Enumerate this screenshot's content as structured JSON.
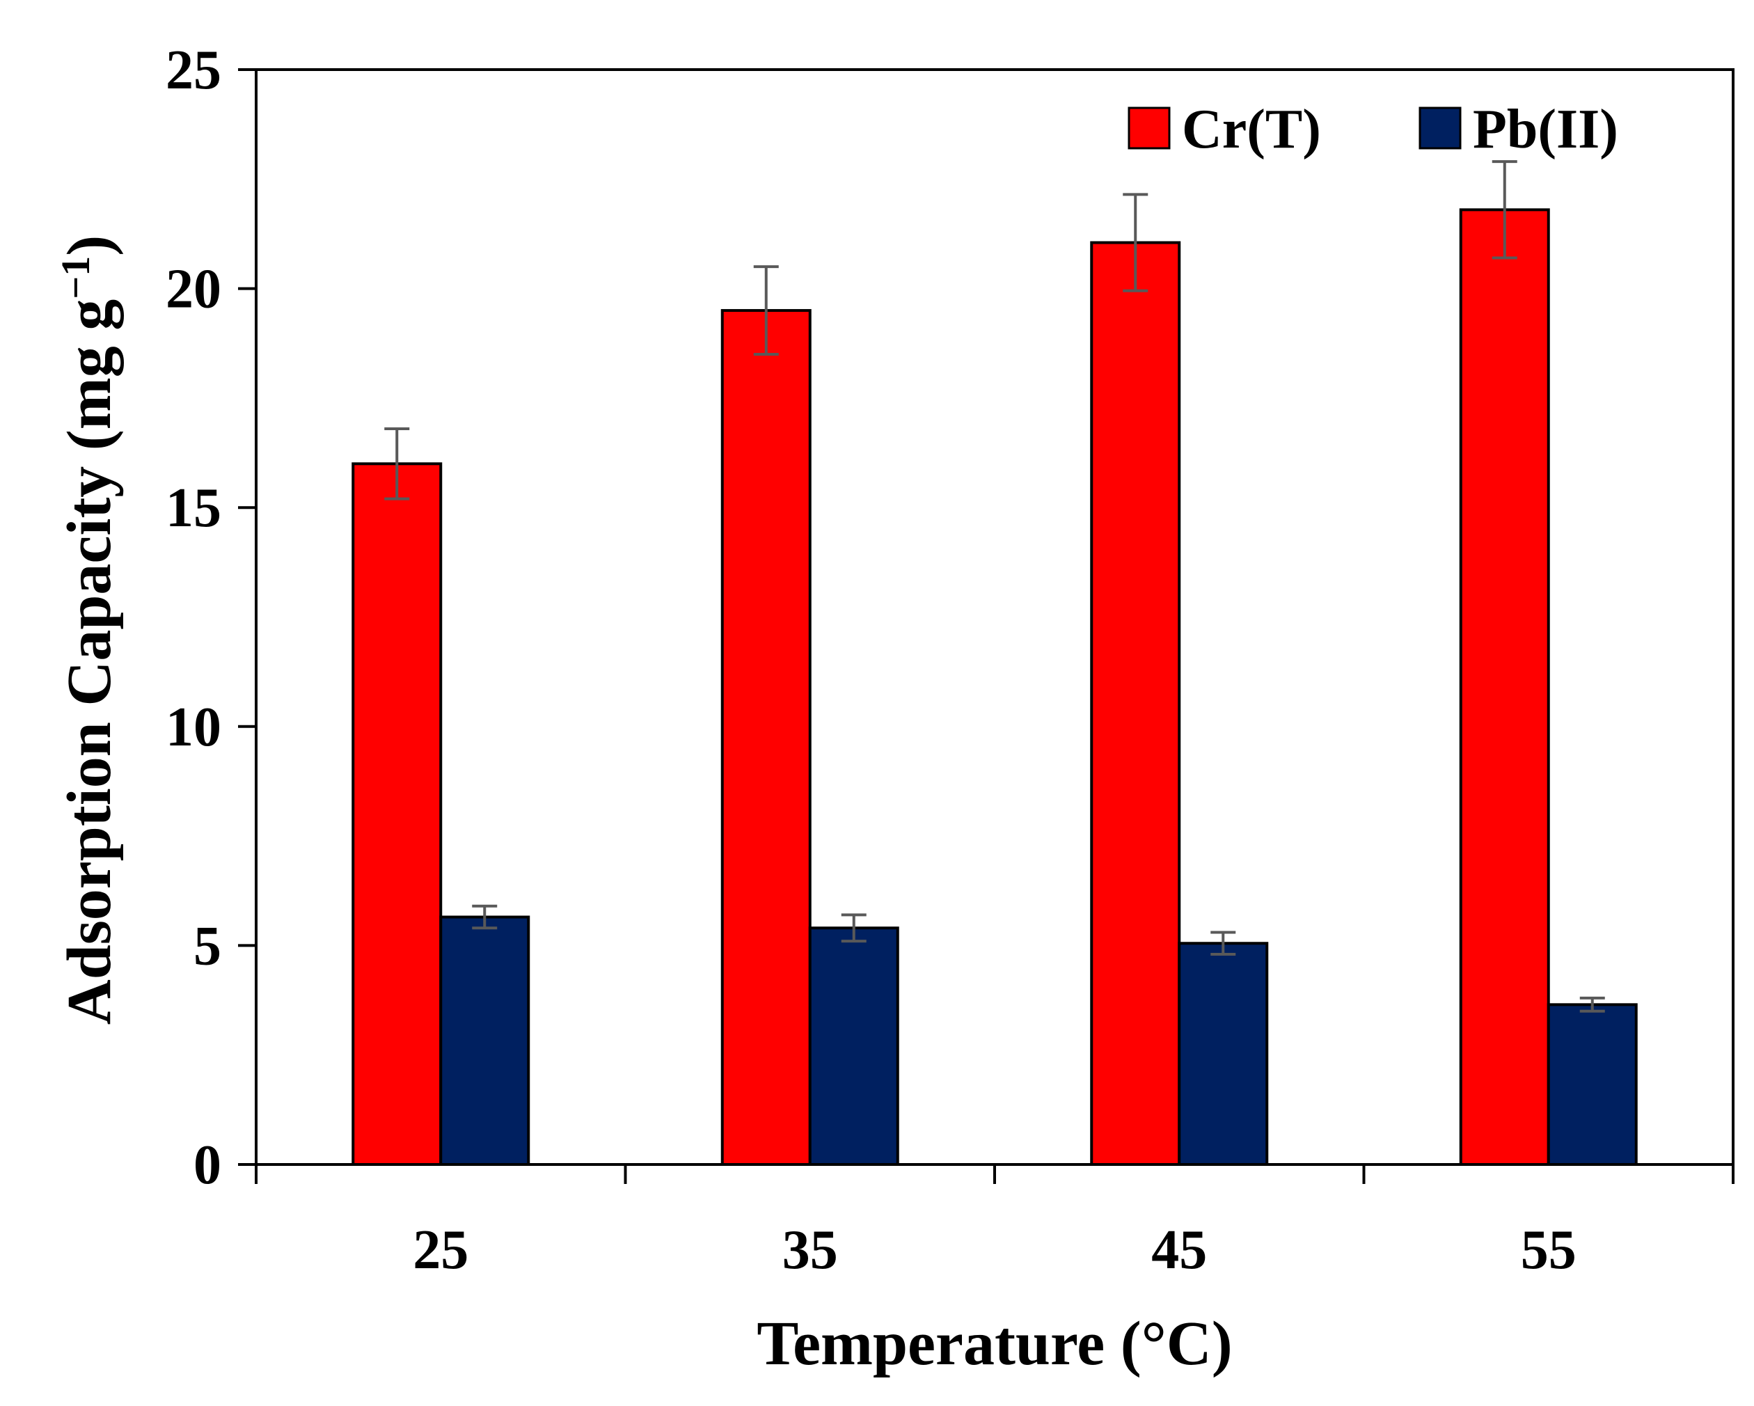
{
  "chart_data": {
    "type": "bar",
    "title": "",
    "xlabel": "Temperature (°C)",
    "ylabel": "Adsorption Capacity (mg g",
    "ylabel_superscript": "−1",
    "ylabel_close": ")",
    "categories": [
      "25",
      "35",
      "45",
      "55"
    ],
    "ylim": [
      0,
      25
    ],
    "yticks": [
      0,
      5,
      10,
      15,
      20,
      25
    ],
    "ytick_labels": [
      "0",
      "5",
      "10",
      "15",
      "20",
      "25"
    ],
    "grid": false,
    "legend_position": "top-right",
    "series": [
      {
        "name": "Cr(T)",
        "color": "#ff0000",
        "values": [
          16.0,
          19.5,
          21.05,
          21.8
        ],
        "errors": [
          0.8,
          1.0,
          1.1,
          1.1
        ]
      },
      {
        "name": "Pb(II)",
        "color": "#002060",
        "values": [
          5.65,
          5.4,
          5.05,
          3.65
        ],
        "errors": [
          0.25,
          0.3,
          0.25,
          0.15
        ]
      }
    ]
  }
}
